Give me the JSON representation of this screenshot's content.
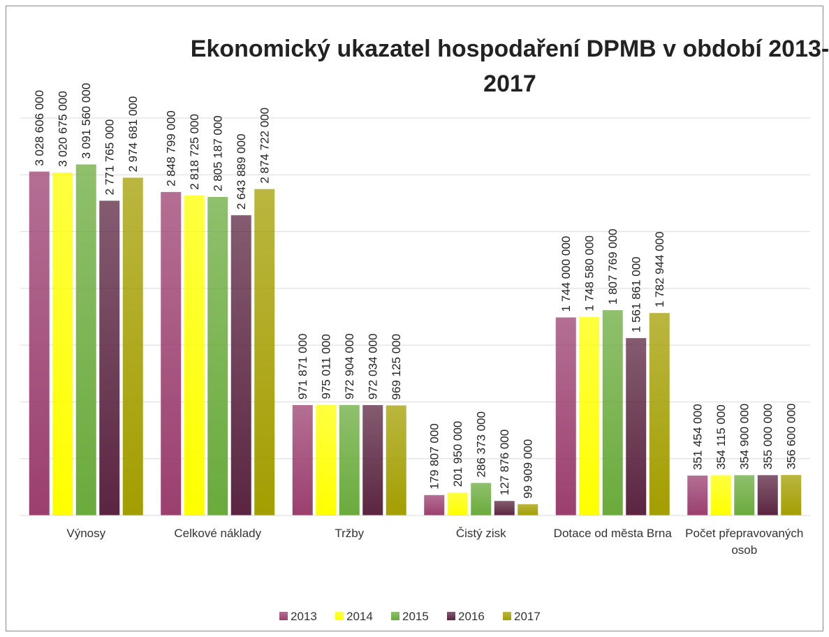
{
  "chart_data": {
    "type": "bar",
    "title": "Ekonomický ukazatel hospodaření DPMB v období 2013-2017",
    "categories": [
      "Výnosy",
      "Celkové náklady",
      "Tržby",
      "Čistý zisk",
      "Dotace od města Brna",
      "Počet přepravovaných osob"
    ],
    "ylim": [
      0,
      3500000000
    ],
    "yticks": [
      0,
      500000000,
      1000000000,
      1500000000,
      2000000000,
      2500000000,
      3000000000,
      3500000000
    ],
    "grid": true,
    "legend": "bottom",
    "series": [
      {
        "name": "2013",
        "color": "#9b3f6f",
        "values": [
          3028606000,
          2848799000,
          971871000,
          179807000,
          1744000000,
          351454000
        ],
        "value_labels": [
          "3 028 606 000",
          "2 848 799 000",
          "971 871 000",
          "179 807 000",
          "1 744 000 000",
          "351 454 000"
        ]
      },
      {
        "name": "2014",
        "color": "#ffff00",
        "values": [
          3020675000,
          2818725000,
          975011000,
          201950000,
          1748580000,
          354115000
        ],
        "value_labels": [
          "3 020 675 000",
          "2 818 725 000",
          "975 011 000",
          "201 950 000",
          "1 748 580 000",
          "354 115 000"
        ]
      },
      {
        "name": "2015",
        "color": "#6aab3c",
        "values": [
          3091560000,
          2805187000,
          972904000,
          286373000,
          1807769000,
          354900000
        ],
        "value_labels": [
          "3 091 560 000",
          "2 805 187 000",
          "972 904 000",
          "286 373 000",
          "1 807 769 000",
          "354 900 000"
        ]
      },
      {
        "name": "2016",
        "color": "#5b2541",
        "values": [
          2771765000,
          2643889000,
          972034000,
          127876000,
          1561861000,
          355000000
        ],
        "value_labels": [
          "2 771 765 000",
          "2 643 889 000",
          "972 034 000",
          "127 876 000",
          "1 561 861 000",
          "355 000 000"
        ]
      },
      {
        "name": "2017",
        "color": "#a39e00",
        "values": [
          2974681000,
          2874722000,
          969125000,
          99909000,
          1782944000,
          356600000
        ],
        "value_labels": [
          "2 974 681 000",
          "2 874 722 000",
          "969 125 000",
          "99 909 000",
          "1 782 944 000",
          "356 600 000"
        ]
      }
    ]
  }
}
